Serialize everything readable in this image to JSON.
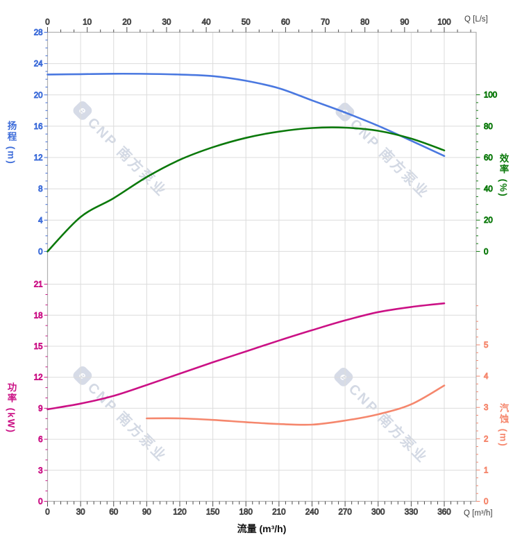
{
  "watermark": {
    "logo_glyph": "e",
    "text": "CNP 南方泵业",
    "color": "#c9d0de"
  },
  "flow_axis": {
    "top_unit_label": "Q [L/s]",
    "bottom_unit_label": "Q [m³/h]",
    "bottom_title": "流量 (m³/h)",
    "top_ticks": [
      0,
      10,
      20,
      30,
      40,
      50,
      60,
      70,
      80,
      90,
      100
    ],
    "bottom_ticks": [
      0,
      30,
      60,
      90,
      120,
      150,
      180,
      210,
      240,
      270,
      300,
      330,
      360
    ],
    "tick_color": "#4a4a4a",
    "label_color": "#3c3c3c"
  },
  "chart_data": [
    {
      "type": "line",
      "name": "head-and-efficiency",
      "x_unit": "m³/h",
      "x_range_m3h": [
        0,
        390
      ],
      "x": [
        0,
        30,
        60,
        90,
        120,
        150,
        180,
        210,
        240,
        270,
        300,
        330,
        360
      ],
      "series": [
        {
          "name": "扬程",
          "unit": "m",
          "axis": "left",
          "color": "#4a78e0",
          "values": [
            22.6,
            22.65,
            22.7,
            22.68,
            22.6,
            22.4,
            21.8,
            20.85,
            19.3,
            17.75,
            16.05,
            14.15,
            12.2
          ]
        },
        {
          "name": "效率",
          "unit": "%",
          "axis": "right",
          "color": "#0b790b",
          "values": [
            0,
            22,
            34,
            47.5,
            58.5,
            66.5,
            72.5,
            76.5,
            78.8,
            79,
            77,
            72,
            64.5
          ]
        }
      ],
      "y_left": {
        "title": "扬程 (m)",
        "color": "#3d6cd9",
        "ticks": [
          0,
          4,
          8,
          12,
          16,
          20,
          24,
          28
        ],
        "range": [
          0,
          28
        ]
      },
      "y_right": {
        "title": "效率 (%)",
        "color": "#0b790b",
        "ticks": [
          0,
          20,
          40,
          60,
          80,
          100
        ],
        "range": [
          0,
          100
        ]
      },
      "grid": true,
      "legend": "none"
    },
    {
      "type": "line",
      "name": "power-and-npsh",
      "x_unit": "m³/h",
      "x_range_m3h": [
        0,
        390
      ],
      "x": [
        0,
        30,
        60,
        90,
        120,
        150,
        180,
        210,
        240,
        270,
        300,
        330,
        360
      ],
      "series": [
        {
          "name": "功率",
          "unit": "kW",
          "axis": "left",
          "color": "#cb1185",
          "values": [
            8.9,
            9.45,
            10.2,
            11.25,
            12.35,
            13.45,
            14.5,
            15.55,
            16.55,
            17.5,
            18.3,
            18.8,
            19.15
          ]
        },
        {
          "name": "汽蚀",
          "unit": "m",
          "axis": "right",
          "color": "#f5876d",
          "x": [
            90,
            120,
            150,
            180,
            210,
            240,
            270,
            300,
            330,
            360
          ],
          "values": [
            2.65,
            2.65,
            2.6,
            2.53,
            2.47,
            2.45,
            2.58,
            2.78,
            3.1,
            3.7
          ]
        }
      ],
      "y_left": {
        "title": "功率 (kW)",
        "color": "#cb1185",
        "ticks": [
          0,
          3,
          6,
          9,
          12,
          15,
          18,
          21
        ],
        "range": [
          0,
          21
        ]
      },
      "y_right": {
        "title": "汽蚀 (m)",
        "color": "#f5876d",
        "ticks": [
          0,
          1,
          2,
          3,
          4,
          5
        ],
        "range": [
          0,
          5
        ]
      },
      "grid": true,
      "legend": "none"
    }
  ],
  "style": {
    "grid_color": "#dcdcdc",
    "border_color": "#b0b0b0",
    "background": "#ffffff"
  }
}
